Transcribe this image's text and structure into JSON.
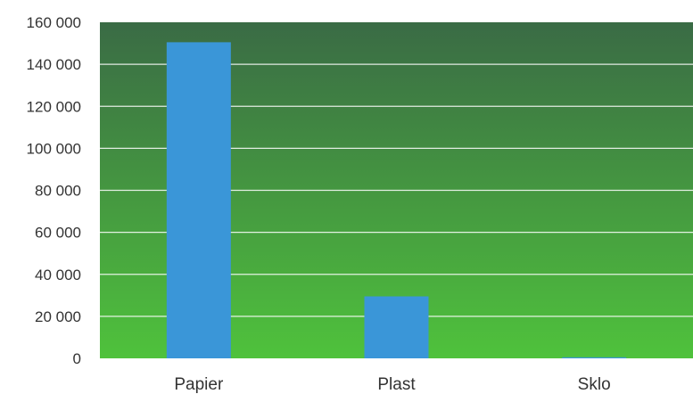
{
  "chart_data": {
    "type": "bar",
    "title": "",
    "xlabel": "",
    "ylabel": "",
    "categories": [
      "Papier",
      "Plast",
      "Sklo"
    ],
    "values": [
      150500,
      29500,
      500
    ],
    "ylim": [
      0,
      160000
    ],
    "yticks": [
      0,
      20000,
      40000,
      60000,
      80000,
      100000,
      120000,
      140000,
      160000
    ],
    "ytick_labels": [
      "0",
      "20 000",
      "40 000",
      "60 000",
      "80 000",
      "100 000",
      "120 000",
      "140 000",
      "160 000"
    ],
    "grid": true,
    "legend": "none",
    "colors": {
      "bar": "#3a96d8",
      "plot_top": "#3a6b45",
      "plot_bottom": "#4fc23c",
      "grid": "#ffffff"
    }
  }
}
